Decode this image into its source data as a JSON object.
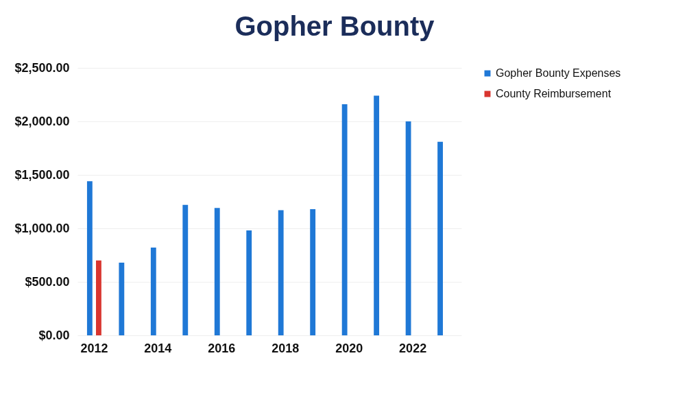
{
  "chart_data": {
    "type": "bar",
    "title": "Gopher Bounty",
    "categories": [
      "2012",
      null,
      "2014",
      null,
      "2016",
      null,
      "2018",
      null,
      "2020",
      null,
      "2022",
      null
    ],
    "series": [
      {
        "name": "Gopher Bounty Expenses",
        "color": "#1f78d6",
        "values": [
          1440,
          680,
          820,
          1220,
          1190,
          980,
          1170,
          1180,
          2160,
          2240,
          2000,
          1810
        ]
      },
      {
        "name": "County Reimbursement",
        "color": "#d9352f",
        "values": [
          700,
          null,
          null,
          null,
          null,
          null,
          null,
          null,
          null,
          null,
          null,
          null
        ]
      }
    ],
    "ylim": [
      0,
      2500
    ],
    "yticks": [
      {
        "value": 0,
        "label": "$0.00"
      },
      {
        "value": 500,
        "label": "$500.00"
      },
      {
        "value": 1000,
        "label": "$1,000.00"
      },
      {
        "value": 1500,
        "label": "$1,500.00"
      },
      {
        "value": 2000,
        "label": "$2,000.00"
      },
      {
        "value": 2500,
        "label": "$2,500.00"
      }
    ],
    "grid": "y",
    "legend": "right"
  }
}
